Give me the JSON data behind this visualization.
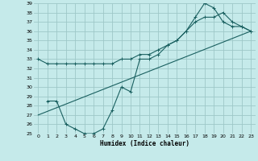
{
  "xlabel": "Humidex (Indice chaleur)",
  "bg_color": "#c5eaea",
  "grid_color": "#9ec8c8",
  "line_color": "#1a6060",
  "xlim": [
    -0.5,
    23.5
  ],
  "ylim": [
    25,
    39
  ],
  "yticks": [
    25,
    26,
    27,
    28,
    29,
    30,
    31,
    32,
    33,
    34,
    35,
    36,
    37,
    38,
    39
  ],
  "xticks": [
    0,
    1,
    2,
    3,
    4,
    5,
    6,
    7,
    8,
    9,
    10,
    11,
    12,
    13,
    14,
    15,
    16,
    17,
    18,
    19,
    20,
    21,
    22,
    23
  ],
  "series1_x": [
    0,
    1,
    2,
    3,
    4,
    5,
    6,
    7,
    8,
    9,
    10,
    11,
    12,
    13,
    14,
    15,
    16,
    17,
    18,
    19,
    20,
    21,
    22,
    23
  ],
  "series1_y": [
    33.0,
    32.5,
    32.5,
    32.5,
    32.5,
    32.5,
    32.5,
    32.5,
    32.5,
    33.0,
    33.0,
    33.5,
    33.5,
    34.0,
    34.5,
    35.0,
    36.0,
    37.0,
    37.5,
    37.5,
    38.0,
    37.0,
    36.5,
    36.0
  ],
  "series2_x": [
    1,
    2,
    3,
    4,
    5,
    6,
    7,
    8,
    9,
    10,
    11,
    12,
    13,
    14,
    15,
    16,
    17,
    18,
    19,
    20,
    21,
    22,
    23
  ],
  "series2_y": [
    28.5,
    28.5,
    26.0,
    25.5,
    25.0,
    25.0,
    25.5,
    27.5,
    30.0,
    29.5,
    33.0,
    33.0,
    33.5,
    34.5,
    35.0,
    36.0,
    37.5,
    39.0,
    38.5,
    37.0,
    36.5,
    36.5,
    36.0
  ],
  "series3_x": [
    0,
    23
  ],
  "series3_y": [
    27.0,
    36.0
  ]
}
